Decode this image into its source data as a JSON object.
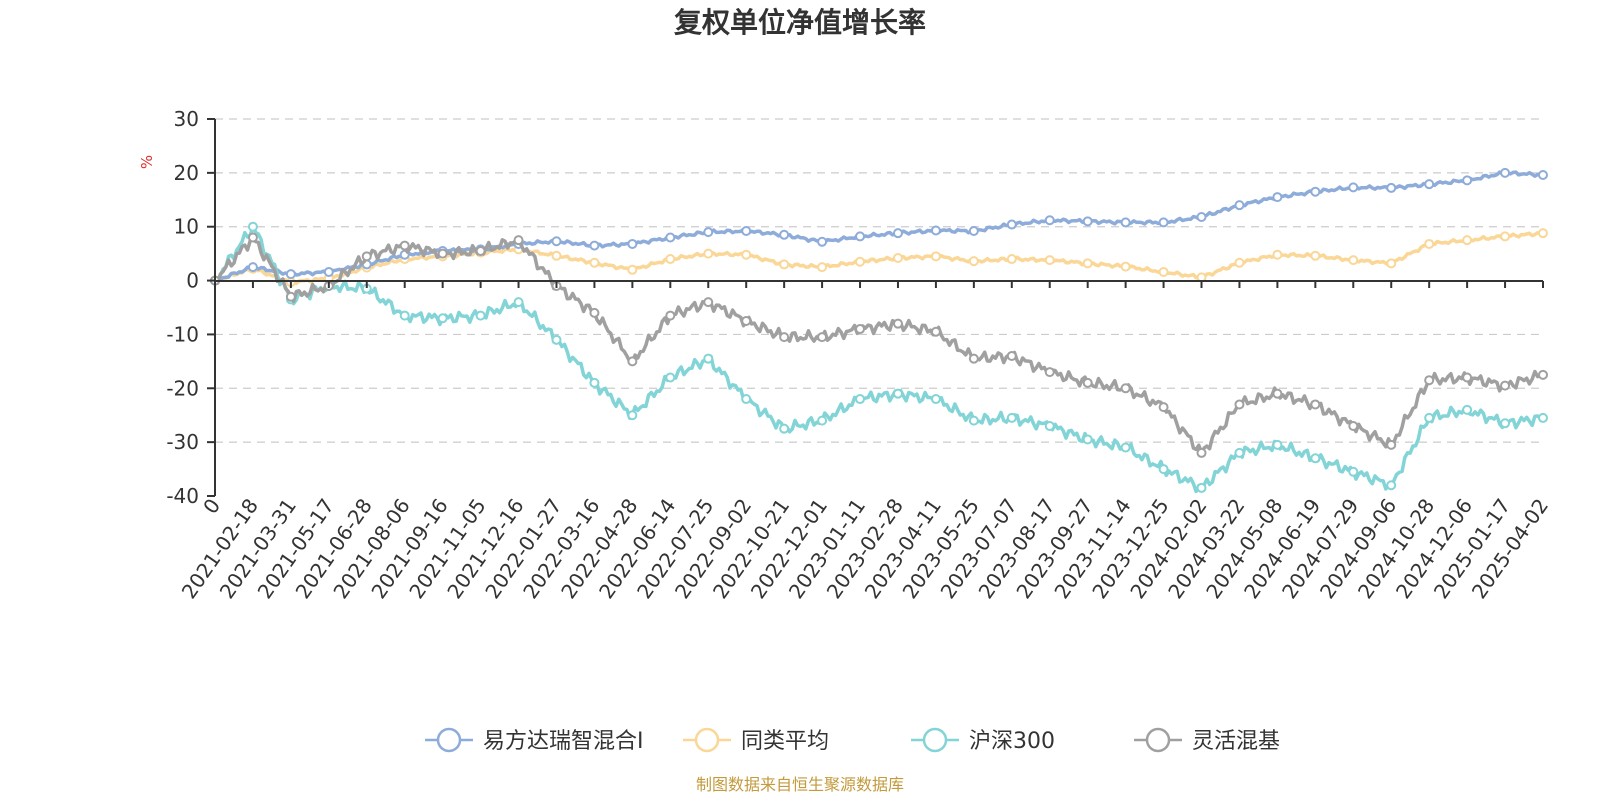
{
  "chart_data": {
    "type": "line",
    "title": "复权单位净值增长率",
    "ylabel": "%",
    "ylim": [
      -40,
      30
    ],
    "yticks": [
      30,
      20,
      10,
      0,
      -10,
      -20,
      -30,
      -40
    ],
    "grid": true,
    "legend_position": "bottom",
    "x": [
      "0",
      "2021-02-18",
      "2021-03-31",
      "2021-05-17",
      "2021-06-28",
      "2021-08-06",
      "2021-09-16",
      "2021-11-05",
      "2021-12-16",
      "2022-01-27",
      "2022-03-16",
      "2022-04-28",
      "2022-06-14",
      "2022-07-25",
      "2022-09-02",
      "2022-10-21",
      "2022-12-01",
      "2023-01-11",
      "2023-02-28",
      "2023-04-11",
      "2023-05-25",
      "2023-07-07",
      "2023-08-17",
      "2023-09-27",
      "2023-11-14",
      "2023-12-25",
      "2024-02-02",
      "2024-03-22",
      "2024-05-08",
      "2024-06-19",
      "2024-07-29",
      "2024-09-06",
      "2024-10-28",
      "2024-12-06",
      "2025-01-17",
      "2025-04-02"
    ],
    "series": [
      {
        "name": "易方达瑞智混合I",
        "color": "#8eacd9",
        "values": [
          0,
          2.5,
          1.2,
          1.6,
          3.0,
          4.8,
          5.5,
          5.8,
          6.8,
          7.3,
          6.5,
          6.8,
          8.0,
          9.0,
          9.2,
          8.5,
          7.2,
          8.2,
          8.8,
          9.3,
          9.2,
          10.4,
          11.2,
          11.0,
          10.8,
          10.8,
          11.8,
          14.0,
          15.5,
          16.5,
          17.3,
          17.2,
          17.9,
          18.6,
          20.0,
          19.6
        ]
      },
      {
        "name": "同类平均",
        "color": "#fad797",
        "values": [
          0,
          2.2,
          -0.3,
          0.4,
          2.4,
          4.0,
          4.5,
          5.2,
          5.8,
          4.6,
          3.3,
          2.0,
          4.0,
          5.0,
          4.8,
          3.0,
          2.5,
          3.5,
          4.2,
          4.5,
          3.6,
          4.0,
          3.8,
          3.2,
          2.6,
          1.6,
          0.6,
          3.3,
          4.8,
          4.6,
          3.8,
          3.2,
          6.8,
          7.5,
          8.2,
          8.8
        ]
      },
      {
        "name": "沪深300",
        "color": "#83d4d6",
        "values": [
          0,
          10.0,
          -3.5,
          -1.0,
          -1.5,
          -6.5,
          -7.0,
          -6.5,
          -4.0,
          -11.0,
          -19.0,
          -25.0,
          -18.0,
          -14.5,
          -22.0,
          -27.5,
          -26.0,
          -22.0,
          -21.0,
          -22.0,
          -26.0,
          -25.5,
          -27.0,
          -29.5,
          -31.0,
          -35.0,
          -38.5,
          -32.0,
          -30.5,
          -33.0,
          -35.5,
          -38.0,
          -25.5,
          -24.0,
          -26.5,
          -25.5
        ]
      },
      {
        "name": "灵活混基",
        "color": "#a0a0a0",
        "values": [
          0,
          8.0,
          -3.0,
          -1.0,
          4.5,
          6.5,
          5.0,
          5.5,
          7.5,
          -1.0,
          -6.0,
          -15.0,
          -6.5,
          -4.0,
          -7.5,
          -10.5,
          -10.5,
          -9.0,
          -8.0,
          -9.5,
          -14.5,
          -14.0,
          -17.0,
          -19.0,
          -20.0,
          -23.5,
          -32.0,
          -23.0,
          -21.0,
          -23.0,
          -27.0,
          -30.5,
          -18.5,
          -18.0,
          -19.5,
          -17.5
        ]
      }
    ]
  },
  "source_text": "制图数据来自恒生聚源数据库",
  "colors": {
    "source": "#c39a3c",
    "unit": "#e03030",
    "axis": "#333333"
  }
}
